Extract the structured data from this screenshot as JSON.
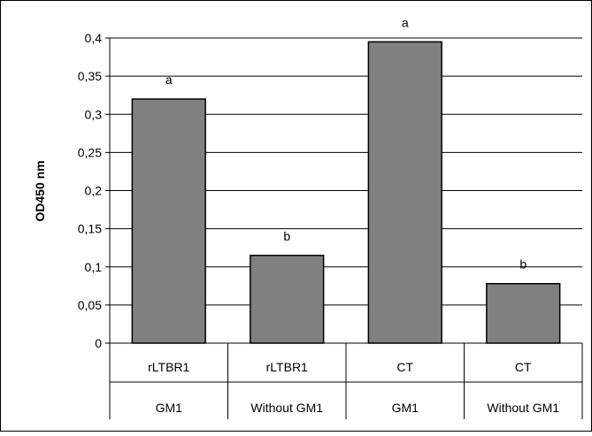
{
  "chart_data": {
    "type": "bar",
    "title": "",
    "ylabel": "OD450 nm",
    "xlabel": "",
    "ylim": [
      0,
      0.4
    ],
    "yticks": [
      0,
      0.05,
      0.1,
      0.15,
      0.2,
      0.25,
      0.3,
      0.35,
      0.4
    ],
    "ytick_labels": [
      "0",
      "0,05",
      "0,1",
      "0,15",
      "0,2",
      "0,25",
      "0,3",
      "0,35",
      "0,4"
    ],
    "grid": true,
    "legend": "none",
    "categories": [
      {
        "line1": "rLTBR1",
        "line2": "GM1"
      },
      {
        "line1": "rLTBR1",
        "line2": "Without GM1"
      },
      {
        "line1": "CT",
        "line2": "GM1"
      },
      {
        "line1": "CT",
        "line2": "Without GM1"
      }
    ],
    "values": [
      0.32,
      0.115,
      0.395,
      0.078
    ],
    "significance_labels": [
      "a",
      "b",
      "a",
      "b"
    ],
    "colors": {
      "bar": "#808080",
      "bar_edge": "#000000",
      "grid": "#000000",
      "frame": "#000000"
    }
  }
}
